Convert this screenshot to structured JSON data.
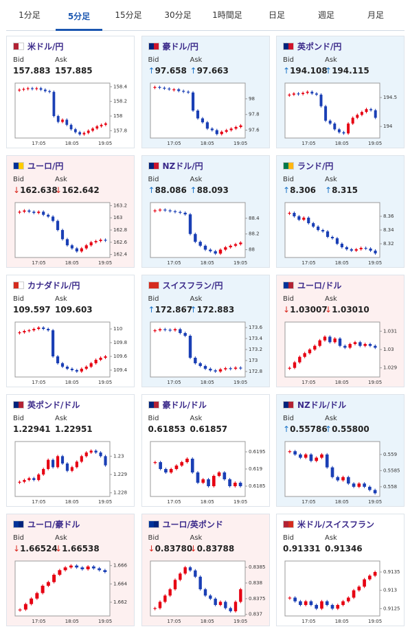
{
  "tabs": {
    "items": [
      "1分足",
      "5分足",
      "15分足",
      "30分足",
      "1時間足",
      "日足",
      "週足",
      "月足"
    ],
    "active": 1
  },
  "labels": {
    "bid": "Bid",
    "ask": "Ask"
  },
  "chart_xticks": [
    "17:05",
    "18:05",
    "19:05"
  ],
  "cards": [
    {
      "name": "米ドル/円",
      "bid": "157.883",
      "ask": "157.885",
      "background": "#ffffff",
      "flag": [
        "#b22234",
        "#ffffff"
      ],
      "chart": {
        "ylim": [
          157.7,
          158.45
        ],
        "yticks": [
          157.8,
          158,
          158.2,
          158.4
        ],
        "closes": [
          158.36,
          158.37,
          158.38,
          158.37,
          158.38,
          158.36,
          158.34,
          158.33,
          158.0,
          157.92,
          157.95,
          157.88,
          157.82,
          157.78,
          157.75,
          157.77,
          157.8,
          157.83,
          157.86,
          157.88,
          157.9
        ]
      }
    },
    {
      "name": "豪ドル/円",
      "arrow": "↑",
      "arrow_color": "#1a73c8",
      "bid": "97.658",
      "ask": "97.663",
      "background": "#eaf4fb",
      "flag": [
        "#00247d",
        "#cf142b"
      ],
      "chart": {
        "ylim": [
          97.5,
          98.2
        ],
        "yticks": [
          97.6,
          97.8,
          98
        ],
        "closes": [
          98.15,
          98.14,
          98.13,
          98.12,
          98.12,
          98.1,
          98.09,
          98.08,
          97.85,
          97.75,
          97.7,
          97.62,
          97.6,
          97.55,
          97.58,
          97.6,
          97.62,
          97.64,
          97.66
        ]
      }
    },
    {
      "name": "英ポンド/円",
      "arrow": "↑",
      "arrow_color": "#1a73c8",
      "bid": "194.108",
      "ask": "194.115",
      "background": "#eaf4fb",
      "flag": [
        "#00247d",
        "#cf142b"
      ],
      "chart": {
        "ylim": [
          193.8,
          194.75
        ],
        "yticks": [
          194,
          194.5
        ],
        "closes": [
          194.55,
          194.57,
          194.56,
          194.58,
          194.6,
          194.57,
          194.55,
          194.35,
          194.1,
          194.05,
          193.95,
          193.9,
          193.88,
          194.05,
          194.15,
          194.2,
          194.25,
          194.3,
          194.28,
          194.15
        ]
      }
    },
    {
      "name": "ユーロ/円",
      "arrow": "↓",
      "arrow_color": "#d9251c",
      "bid": "162.638",
      "ask": "162.642",
      "background": "#fdf0f0",
      "flag": [
        "#003399",
        "#ffcc00"
      ],
      "chart": {
        "ylim": [
          162.35,
          163.25
        ],
        "yticks": [
          162.4,
          162.6,
          162.8,
          163,
          163.2
        ],
        "closes": [
          163.1,
          163.12,
          163.1,
          163.08,
          163.1,
          163.05,
          163.02,
          162.95,
          162.8,
          162.65,
          162.55,
          162.5,
          162.45,
          162.5,
          162.55,
          162.6,
          162.62,
          162.64,
          162.63
        ]
      }
    },
    {
      "name": "NZドル/円",
      "arrow": "↑",
      "arrow_color": "#1a73c8",
      "bid": "88.086",
      "ask": "88.093",
      "background": "#eaf4fb",
      "flag": [
        "#00247d",
        "#cc142b"
      ],
      "chart": {
        "ylim": [
          87.9,
          88.6
        ],
        "yticks": [
          88,
          88.2,
          88.4
        ],
        "closes": [
          88.5,
          88.51,
          88.5,
          88.49,
          88.48,
          88.47,
          88.45,
          88.2,
          88.1,
          88.05,
          88.0,
          87.98,
          87.95,
          88.0,
          88.03,
          88.05,
          88.07,
          88.09
        ]
      }
    },
    {
      "name": "ランド/円",
      "arrow": "↑",
      "arrow_color": "#1a73c8",
      "bid": "8.306",
      "ask": "8.315",
      "background": "#eaf4fb",
      "flag": [
        "#007a4d",
        "#ffb612"
      ],
      "chart": {
        "ylim": [
          8.3,
          8.38
        ],
        "yticks": [
          8.32,
          8.34,
          8.36
        ],
        "closes": [
          8.365,
          8.36,
          8.355,
          8.358,
          8.35,
          8.345,
          8.34,
          8.338,
          8.33,
          8.328,
          8.32,
          8.315,
          8.312,
          8.31,
          8.312,
          8.314,
          8.313,
          8.31,
          8.306
        ]
      }
    },
    {
      "name": "カナダドル/円",
      "bid": "109.597",
      "ask": "109.603",
      "background": "#ffffff",
      "flag": [
        "#d52b1e",
        "#ffffff"
      ],
      "chart": {
        "ylim": [
          109.3,
          110.1
        ],
        "yticks": [
          109.4,
          109.6,
          109.8,
          110
        ],
        "closes": [
          109.95,
          109.97,
          109.98,
          110.0,
          110.02,
          110.0,
          109.98,
          109.6,
          109.5,
          109.45,
          109.42,
          109.4,
          109.38,
          109.42,
          109.45,
          109.5,
          109.55,
          109.58,
          109.6
        ]
      }
    },
    {
      "name": "スイスフラン/円",
      "arrow": "↑",
      "arrow_color": "#1a73c8",
      "bid": "172.867",
      "ask": "172.883",
      "background": "#eaf4fb",
      "flag": [
        "#d52b1e",
        "#d52b1e"
      ],
      "chart": {
        "ylim": [
          172.7,
          173.7
        ],
        "yticks": [
          172.8,
          173,
          173.2,
          173.4,
          173.6
        ],
        "closes": [
          173.55,
          173.57,
          173.56,
          173.55,
          173.57,
          173.5,
          173.45,
          173.05,
          172.95,
          172.9,
          172.85,
          172.82,
          172.8,
          172.84,
          172.86,
          172.85,
          172.87,
          172.86
        ]
      }
    },
    {
      "name": "ユーロ/ドル",
      "arrow": "↓",
      "arrow_color": "#d9251c",
      "bid": "1.03007",
      "ask": "1.03010",
      "background": "#fdf0f0",
      "flag": [
        "#003399",
        "#b22234"
      ],
      "chart": {
        "ylim": [
          1.0285,
          1.0315
        ],
        "yticks": [
          1.029,
          1.03,
          1.031
        ],
        "closes": [
          1.029,
          1.0293,
          1.0296,
          1.0298,
          1.03,
          1.0302,
          1.0305,
          1.0307,
          1.0304,
          1.0306,
          1.0302,
          1.0301,
          1.0303,
          1.0304,
          1.0302,
          1.0303,
          1.0302,
          1.0301
        ]
      }
    },
    {
      "name": "英ポンド/ドル",
      "bid": "1.22941",
      "ask": "1.22951",
      "background": "#ffffff",
      "flag": [
        "#00247d",
        "#b22234"
      ],
      "chart": {
        "ylim": [
          1.2278,
          1.2308
        ],
        "yticks": [
          1.228,
          1.229,
          1.23
        ],
        "closes": [
          1.2286,
          1.2287,
          1.2288,
          1.2287,
          1.229,
          1.2293,
          1.2298,
          1.2294,
          1.23,
          1.2296,
          1.2292,
          1.2294,
          1.2297,
          1.23,
          1.2302,
          1.2303,
          1.2302,
          1.23,
          1.2295
        ]
      }
    },
    {
      "name": "豪ドル/ドル",
      "bid": "0.61853",
      "ask": "0.61857",
      "background": "#ffffff",
      "flag": [
        "#00247d",
        "#b22234"
      ],
      "chart": {
        "ylim": [
          0.6182,
          0.6198
        ],
        "yticks": [
          0.6185,
          0.619,
          0.6195
        ],
        "closes": [
          0.6192,
          0.619,
          0.6189,
          0.619,
          0.6191,
          0.6192,
          0.6193,
          0.6189,
          0.6186,
          0.6187,
          0.6185,
          0.6188,
          0.6189,
          0.6187,
          0.6185,
          0.6186,
          0.6185
        ]
      }
    },
    {
      "name": "NZドル/ドル",
      "arrow": "↑",
      "arrow_color": "#1a73c8",
      "bid": "0.55786",
      "ask": "0.55800",
      "background": "#eaf4fb",
      "flag": [
        "#00247d",
        "#b22234"
      ],
      "chart": {
        "ylim": [
          0.5577,
          0.5594
        ],
        "yticks": [
          0.558,
          0.5585,
          0.559
        ],
        "closes": [
          0.5591,
          0.559,
          0.5589,
          0.559,
          0.5588,
          0.5589,
          0.559,
          0.5586,
          0.5583,
          0.5582,
          0.5583,
          0.5581,
          0.558,
          0.5581,
          0.558,
          0.5579,
          0.5578
        ]
      }
    },
    {
      "name": "ユーロ/豪ドル",
      "arrow": "↓",
      "arrow_color": "#d9251c",
      "bid": "1.66524",
      "ask": "1.66538",
      "background": "#fdf0f0",
      "flag": [
        "#003399",
        "#00247d"
      ],
      "chart": {
        "ylim": [
          1.6605,
          1.6665
        ],
        "yticks": [
          1.662,
          1.664,
          1.666
        ],
        "closes": [
          1.6612,
          1.6618,
          1.6624,
          1.663,
          1.6638,
          1.6642,
          1.665,
          1.6655,
          1.6658,
          1.666,
          1.6658,
          1.6656,
          1.6659,
          1.6657,
          1.6655,
          1.6653
        ]
      }
    },
    {
      "name": "ユーロ/英ポンド",
      "arrow": "↓",
      "arrow_color": "#d9251c",
      "bid": "0.83780",
      "ask": "0.83788",
      "background": "#fdf0f0",
      "flag": [
        "#003399",
        "#00247d"
      ],
      "chart": {
        "ylim": [
          0.83695,
          0.8387
        ],
        "yticks": [
          0.837,
          0.8375,
          0.838,
          0.8385
        ],
        "closes": [
          0.8372,
          0.8374,
          0.8376,
          0.8378,
          0.8381,
          0.8383,
          0.8385,
          0.8384,
          0.8382,
          0.8378,
          0.8376,
          0.8375,
          0.8373,
          0.8374,
          0.8372,
          0.8371,
          0.8374,
          0.8378
        ]
      }
    },
    {
      "name": "米ドル/スイスフラン",
      "bid": "0.91331",
      "ask": "0.91346",
      "background": "#ffffff",
      "flag": [
        "#b22234",
        "#d52b1e"
      ],
      "chart": {
        "ylim": [
          0.9123,
          0.9138
        ],
        "yticks": [
          0.9125,
          0.913,
          0.9135
        ],
        "closes": [
          0.9128,
          0.9127,
          0.9126,
          0.9127,
          0.9126,
          0.9125,
          0.9127,
          0.9126,
          0.9125,
          0.9126,
          0.9127,
          0.9128,
          0.913,
          0.9131,
          0.9133,
          0.9134,
          0.9135
        ]
      }
    }
  ]
}
